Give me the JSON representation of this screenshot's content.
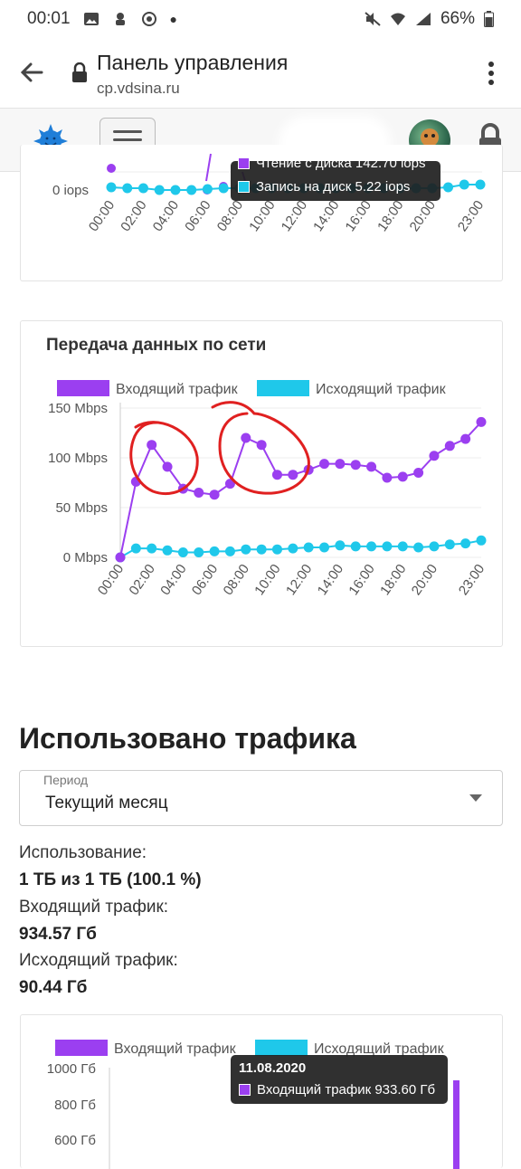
{
  "status_bar": {
    "time": "00:01",
    "battery": "66%"
  },
  "browser": {
    "page_title": "Панель управления",
    "url": "cp.vdsina.ru"
  },
  "disk_chart": {
    "y_tick": "0 iops",
    "x_ticks": [
      "00:00",
      "02:00",
      "04:00",
      "06:00",
      "08:00",
      "10:00",
      "12:00",
      "14:00",
      "16:00",
      "18:00",
      "20:00",
      "23:00"
    ],
    "tooltip": {
      "line1": "Чтение с диска 142.70 iops",
      "line2": "Запись на диск 5.22 iops"
    },
    "colors": {
      "read": "#9b3ff0",
      "write": "#1fc8ea"
    }
  },
  "network_chart": {
    "title": "Передача данных по сети",
    "legend": [
      "Входящий трафик",
      "Исходящий трафик"
    ],
    "colors": {
      "in": "#9b3ff0",
      "out": "#1fc8ea"
    },
    "y_ticks": [
      "150 Mbps",
      "100 Mbps",
      "50 Mbps",
      "0 Mbps"
    ],
    "x_ticks": [
      "00:00",
      "02:00",
      "04:00",
      "06:00",
      "08:00",
      "10:00",
      "12:00",
      "14:00",
      "16:00",
      "18:00",
      "20:00",
      "23:00"
    ]
  },
  "chart_data": {
    "type": "line",
    "title": "Передача данных по сети",
    "ylim": [
      0,
      150
    ],
    "x": [
      "00:00",
      "01:00",
      "02:00",
      "03:00",
      "04:00",
      "05:00",
      "06:00",
      "07:00",
      "08:00",
      "09:00",
      "10:00",
      "11:00",
      "12:00",
      "13:00",
      "14:00",
      "15:00",
      "16:00",
      "17:00",
      "18:00",
      "19:00",
      "20:00",
      "21:00",
      "22:00",
      "23:00"
    ],
    "series": [
      {
        "name": "Входящий трафик",
        "values": [
          0,
          76,
          113,
          91,
          69,
          65,
          63,
          74,
          120,
          113,
          83,
          83,
          88,
          94,
          94,
          93,
          91,
          80,
          81,
          85,
          102,
          112,
          119,
          136
        ]
      },
      {
        "name": "Исходящий трафик",
        "values": [
          0,
          9,
          9,
          7,
          5,
          5,
          6,
          6,
          8,
          8,
          8,
          9,
          10,
          10,
          12,
          11,
          11,
          11,
          11,
          10,
          11,
          13,
          14,
          17
        ]
      }
    ]
  },
  "traffic_section": {
    "title": "Использовано трафика",
    "period_label": "Период",
    "period_value": "Текущий месяц",
    "usage_label": "Использование:",
    "usage_value": "1 ТБ из 1 ТБ (100.1 %)",
    "in_label": "Входящий трафик:",
    "in_value": "934.57 Гб",
    "out_label": "Исходящий трафик:",
    "out_value": "90.44 Гб"
  },
  "monthly_chart": {
    "legend": [
      "Входящий трафик",
      "Исходящий трафик"
    ],
    "y_ticks": [
      "1000 Гб",
      "800 Гб",
      "600 Гб"
    ],
    "tooltip": {
      "date": "11.08.2020",
      "line": "Входящий трафик 933.60 Гб"
    }
  }
}
